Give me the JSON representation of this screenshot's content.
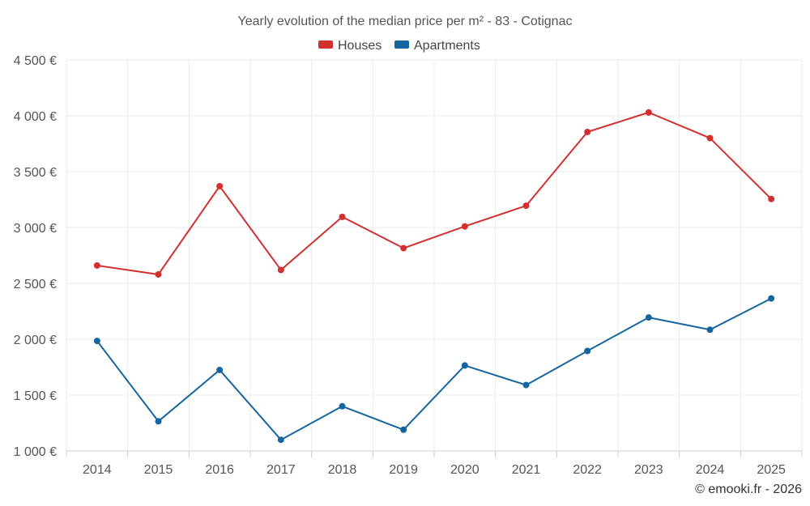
{
  "chart_data": {
    "type": "line",
    "title": "Yearly evolution of the median price per m² - 83 - Cotignac",
    "categories": [
      "2014",
      "2015",
      "2016",
      "2017",
      "2018",
      "2019",
      "2020",
      "2021",
      "2022",
      "2023",
      "2024",
      "2025"
    ],
    "series": [
      {
        "name": "Houses",
        "color": "#d32f2f",
        "values": [
          2660,
          2580,
          3370,
          2620,
          3095,
          2815,
          3010,
          3195,
          3855,
          4030,
          3800,
          3255
        ]
      },
      {
        "name": "Apartments",
        "color": "#1565a0",
        "values": [
          1985,
          1265,
          1725,
          1100,
          1400,
          1190,
          1765,
          1590,
          1895,
          2195,
          2085,
          2365
        ]
      }
    ],
    "y_ticks": [
      1000,
      1500,
      2000,
      2500,
      3000,
      3500,
      4000,
      4500
    ],
    "y_tick_labels": [
      "1 000 €",
      "1 500 €",
      "2 000 €",
      "2 500 €",
      "3 000 €",
      "3 500 €",
      "4 000 €",
      "4 500 €"
    ],
    "ylim": [
      1000,
      4500
    ],
    "xlabel": "",
    "ylabel": "",
    "grid": true,
    "legend_position": "top-center",
    "credit": "© emooki.fr - 2026"
  }
}
